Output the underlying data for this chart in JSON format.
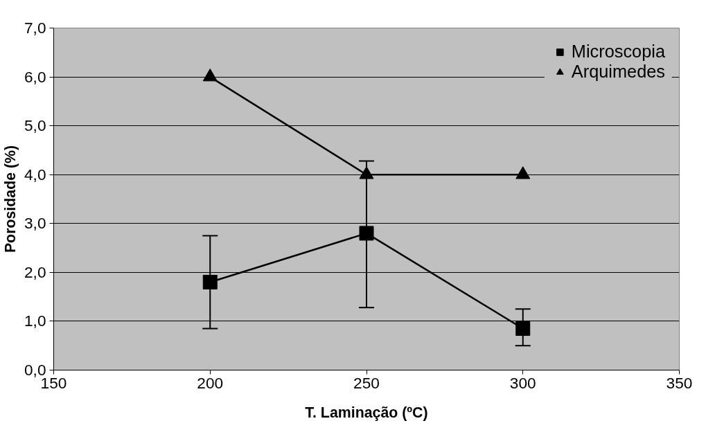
{
  "chart_data": {
    "type": "line",
    "xlabel": "T. Laminação (ºC)",
    "ylabel": "Porosidade (%)",
    "x": [
      200,
      250,
      300
    ],
    "series": [
      {
        "name": "Microscopia",
        "color": "#000000",
        "marker": "square",
        "values": [
          1.8,
          2.8,
          0.85
        ],
        "errors": [
          [
            0.85,
            2.75
          ],
          [
            1.28,
            4.28
          ],
          [
            0.5,
            1.25
          ]
        ]
      },
      {
        "name": "Arquimedes",
        "color": "#000000",
        "marker": "triangle",
        "values": [
          6.0,
          4.0,
          4.0
        ]
      }
    ],
    "xlim": [
      150,
      350
    ],
    "xticks": [
      150,
      200,
      250,
      300,
      350
    ],
    "ylim": [
      0,
      7
    ],
    "yticks": [
      {
        "value": 0,
        "label": "0,0"
      },
      {
        "value": 1,
        "label": "1,0"
      },
      {
        "value": 2,
        "label": "2,0"
      },
      {
        "value": 3,
        "label": "3,0"
      },
      {
        "value": 4,
        "label": "4,0"
      },
      {
        "value": 5,
        "label": "5,0"
      },
      {
        "value": 6,
        "label": "6,0"
      },
      {
        "value": 7,
        "label": "7,0"
      }
    ],
    "grid": "y",
    "legend": "top right",
    "line_style": "solid"
  }
}
